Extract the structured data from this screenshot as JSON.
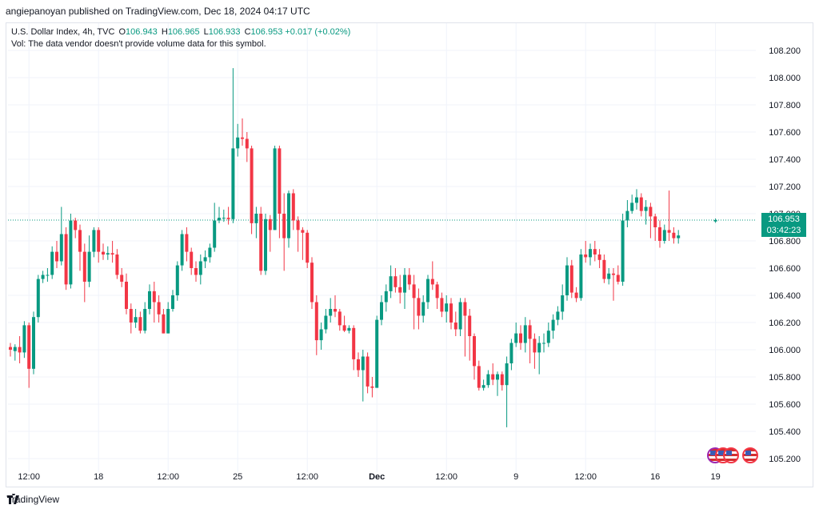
{
  "publisher": "angiepanoyan published on TradingView.com, Dec 18, 2024 04:17 UTC",
  "legend": {
    "symbol": "U.S. Dollar Index, 4h, TVC",
    "o_label": "O",
    "o": "106.943",
    "h_label": "H",
    "h": "106.965",
    "l_label": "L",
    "l": "106.933",
    "c_label": "C",
    "c": "106.953",
    "change": "+0.017 (+0.02%)"
  },
  "volume_note": "Vol: The data vendor doesn't provide volume data for this symbol.",
  "last_price": {
    "price": "106.953",
    "countdown": "03:42:23"
  },
  "footer": {
    "brand": "TradingView"
  },
  "colors": {
    "up": "#089981",
    "down": "#f23645",
    "grid": "#f0f3fa",
    "axis_text": "#131722",
    "price_line": "#089981"
  },
  "icons": [
    "tradingview-logo-icon",
    "us-flag-event-icon",
    "us-flag-event-icon",
    "us-flag-event-icon"
  ],
  "chart_data": {
    "type": "candlestick",
    "title": "U.S. Dollar Index, 4h, TVC",
    "ylim": [
      105.1,
      108.4
    ],
    "yticks": [
      "105.200",
      "105.400",
      "105.600",
      "105.800",
      "106.000",
      "106.200",
      "106.400",
      "106.600",
      "106.800",
      "107.000",
      "107.200",
      "107.400",
      "107.600",
      "107.800",
      "108.000",
      "108.200"
    ],
    "xticks": [
      "12:00",
      "18",
      "12:00",
      "25",
      "12:00",
      "Dec",
      "12:00",
      "9",
      "12:00",
      "16",
      "19"
    ],
    "xtick_bar_index": [
      4,
      19,
      34,
      49,
      64,
      79,
      94,
      109,
      124,
      139,
      152
    ],
    "bar_count": 152,
    "candles": [
      [
        106.02,
        106.0,
        106.05,
        105.95
      ],
      [
        105.99,
        106.02,
        106.04,
        105.92
      ],
      [
        106.02,
        105.98,
        106.1,
        105.9
      ],
      [
        105.98,
        106.18,
        106.21,
        105.94
      ],
      [
        106.18,
        105.86,
        106.2,
        105.72
      ],
      [
        105.86,
        106.24,
        106.28,
        105.82
      ],
      [
        106.24,
        106.52,
        106.55,
        106.2
      ],
      [
        106.52,
        106.55,
        106.58,
        106.49
      ],
      [
        106.55,
        106.55,
        106.6,
        106.5
      ],
      [
        106.55,
        106.72,
        106.76,
        106.52
      ],
      [
        106.72,
        106.65,
        106.8,
        106.6
      ],
      [
        106.65,
        106.85,
        107.05,
        106.62
      ],
      [
        106.85,
        106.48,
        106.9,
        106.44
      ],
      [
        106.48,
        106.95,
        107.0,
        106.45
      ],
      [
        106.95,
        106.88,
        106.97,
        106.82
      ],
      [
        106.88,
        106.72,
        106.92,
        106.58
      ],
      [
        106.72,
        106.5,
        106.78,
        106.35
      ],
      [
        106.5,
        106.72,
        106.84,
        106.46
      ],
      [
        106.72,
        106.88,
        106.9,
        106.68
      ],
      [
        106.88,
        106.72,
        106.9,
        106.64
      ],
      [
        106.72,
        106.7,
        106.78,
        106.66
      ],
      [
        106.7,
        106.71,
        106.76,
        106.66
      ],
      [
        106.71,
        106.7,
        106.8,
        106.64
      ],
      [
        106.7,
        106.55,
        106.74,
        106.52
      ],
      [
        106.55,
        106.5,
        106.6,
        106.46
      ],
      [
        106.5,
        106.3,
        106.56,
        106.26
      ],
      [
        106.3,
        106.2,
        106.34,
        106.12
      ],
      [
        106.2,
        106.24,
        106.3,
        106.16
      ],
      [
        106.24,
        106.14,
        106.28,
        106.12
      ],
      [
        106.14,
        106.3,
        106.35,
        106.12
      ],
      [
        106.3,
        106.43,
        106.48,
        106.26
      ],
      [
        106.43,
        106.35,
        106.5,
        106.2
      ],
      [
        106.35,
        106.26,
        106.4,
        106.2
      ],
      [
        106.26,
        106.12,
        106.3,
        106.12
      ],
      [
        106.12,
        106.3,
        106.35,
        106.12
      ],
      [
        106.3,
        106.4,
        106.44,
        106.28
      ],
      [
        106.4,
        106.62,
        106.65,
        106.36
      ],
      [
        106.62,
        106.85,
        106.88,
        106.58
      ],
      [
        106.85,
        106.72,
        106.9,
        106.65
      ],
      [
        106.72,
        106.6,
        106.75,
        106.55
      ],
      [
        106.6,
        106.55,
        106.65,
        106.5
      ],
      [
        106.55,
        106.65,
        106.7,
        106.48
      ],
      [
        106.65,
        106.68,
        106.73,
        106.6
      ],
      [
        106.68,
        106.75,
        106.78,
        106.64
      ],
      [
        106.75,
        106.95,
        107.08,
        106.72
      ],
      [
        106.95,
        106.97,
        107.05,
        106.93
      ],
      [
        106.97,
        106.97,
        107.03,
        106.94
      ],
      [
        106.97,
        106.96,
        107.05,
        106.92
      ],
      [
        106.96,
        107.48,
        108.07,
        106.93
      ],
      [
        107.48,
        107.56,
        107.66,
        107.42
      ],
      [
        107.56,
        107.55,
        107.7,
        107.5
      ],
      [
        107.55,
        107.48,
        107.6,
        107.38
      ],
      [
        107.48,
        106.93,
        107.5,
        106.85
      ],
      [
        106.93,
        107.0,
        107.05,
        106.82
      ],
      [
        107.0,
        106.58,
        107.05,
        106.55
      ],
      [
        106.58,
        106.96,
        107.0,
        106.55
      ],
      [
        106.96,
        106.88,
        106.99,
        106.72
      ],
      [
        106.88,
        107.48,
        107.5,
        106.88
      ],
      [
        107.48,
        107.0,
        107.5,
        106.82
      ],
      [
        107.0,
        106.82,
        107.15,
        106.58
      ],
      [
        106.82,
        107.15,
        107.17,
        106.75
      ],
      [
        107.15,
        106.95,
        107.18,
        106.88
      ],
      [
        106.95,
        106.88,
        106.98,
        106.72
      ],
      [
        106.88,
        106.86,
        106.9,
        106.66
      ],
      [
        106.86,
        106.64,
        106.88,
        106.6
      ],
      [
        106.64,
        106.35,
        106.68,
        106.3
      ],
      [
        106.35,
        106.07,
        106.4,
        105.96
      ],
      [
        106.07,
        106.15,
        106.2,
        106.0
      ],
      [
        106.15,
        106.25,
        106.3,
        106.12
      ],
      [
        106.25,
        106.3,
        106.38,
        106.2
      ],
      [
        106.3,
        106.28,
        106.4,
        106.24
      ],
      [
        106.28,
        106.18,
        106.3,
        106.14
      ],
      [
        106.18,
        106.14,
        106.25,
        106.13
      ],
      [
        106.14,
        106.16,
        106.18,
        106.12
      ],
      [
        106.16,
        105.93,
        106.18,
        105.85
      ],
      [
        105.93,
        105.85,
        105.98,
        105.8
      ],
      [
        105.85,
        105.95,
        106.0,
        105.62
      ],
      [
        105.95,
        105.73,
        105.98,
        105.68
      ],
      [
        105.73,
        105.72,
        105.8,
        105.65
      ],
      [
        105.72,
        106.22,
        106.25,
        105.72
      ],
      [
        106.22,
        106.35,
        106.4,
        106.18
      ],
      [
        106.35,
        106.43,
        106.48,
        106.28
      ],
      [
        106.43,
        106.54,
        106.62,
        106.38
      ],
      [
        106.54,
        106.46,
        106.6,
        106.42
      ],
      [
        106.46,
        106.42,
        106.55,
        106.34
      ],
      [
        106.42,
        106.55,
        106.6,
        106.3
      ],
      [
        106.55,
        106.48,
        106.6,
        106.44
      ],
      [
        106.48,
        106.38,
        106.55,
        106.15
      ],
      [
        106.38,
        106.25,
        106.45,
        106.15
      ],
      [
        106.25,
        106.35,
        106.4,
        106.2
      ],
      [
        106.35,
        106.52,
        106.55,
        106.3
      ],
      [
        106.52,
        106.48,
        106.65,
        106.44
      ],
      [
        106.48,
        106.38,
        106.5,
        106.3
      ],
      [
        106.38,
        106.28,
        106.42,
        106.24
      ],
      [
        106.28,
        106.34,
        106.4,
        106.2
      ],
      [
        106.34,
        106.2,
        106.38,
        106.15
      ],
      [
        106.2,
        106.15,
        106.28,
        106.1
      ],
      [
        106.15,
        106.35,
        106.38,
        106.1
      ],
      [
        106.35,
        106.25,
        106.38,
        105.95
      ],
      [
        106.25,
        106.1,
        106.3,
        105.92
      ],
      [
        106.1,
        105.88,
        106.12,
        105.78
      ],
      [
        105.88,
        105.72,
        105.92,
        105.7
      ],
      [
        105.72,
        105.74,
        105.78,
        105.7
      ],
      [
        105.74,
        105.82,
        105.85,
        105.72
      ],
      [
        105.82,
        105.78,
        105.9,
        105.74
      ],
      [
        105.78,
        105.82,
        105.84,
        105.66
      ],
      [
        105.82,
        105.74,
        105.84,
        105.7
      ],
      [
        105.74,
        105.9,
        105.95,
        105.43
      ],
      [
        105.9,
        106.05,
        106.08,
        105.85
      ],
      [
        106.05,
        106.12,
        106.2,
        106.02
      ],
      [
        106.12,
        106.05,
        106.18,
        106.0
      ],
      [
        106.05,
        106.18,
        106.24,
        105.98
      ],
      [
        106.18,
        106.08,
        106.22,
        105.9
      ],
      [
        106.08,
        105.98,
        106.12,
        105.86
      ],
      [
        105.98,
        106.05,
        106.1,
        105.82
      ],
      [
        106.05,
        106.05,
        106.12,
        105.98
      ],
      [
        106.05,
        106.14,
        106.2,
        106.02
      ],
      [
        106.14,
        106.22,
        106.26,
        106.08
      ],
      [
        106.22,
        106.28,
        106.32,
        106.18
      ],
      [
        106.28,
        106.4,
        106.48,
        106.22
      ],
      [
        106.4,
        106.62,
        106.68,
        106.36
      ],
      [
        106.62,
        106.42,
        106.66,
        106.38
      ],
      [
        106.42,
        106.38,
        106.46,
        106.35
      ],
      [
        106.38,
        106.7,
        106.74,
        106.36
      ],
      [
        106.7,
        106.68,
        106.8,
        106.64
      ],
      [
        106.68,
        106.74,
        106.78,
        106.62
      ],
      [
        106.74,
        106.7,
        106.8,
        106.65
      ],
      [
        106.7,
        106.66,
        106.74,
        106.6
      ],
      [
        106.66,
        106.52,
        106.7,
        106.49
      ],
      [
        106.52,
        106.56,
        106.6,
        106.48
      ],
      [
        106.56,
        106.55,
        106.6,
        106.36
      ],
      [
        106.55,
        106.5,
        106.62,
        106.48
      ],
      [
        106.5,
        106.95,
        107.0,
        106.47
      ],
      [
        106.95,
        107.02,
        107.1,
        106.9
      ],
      [
        107.02,
        107.08,
        107.14,
        107.0
      ],
      [
        107.08,
        107.12,
        107.18,
        107.03
      ],
      [
        107.12,
        107.02,
        107.15,
        106.98
      ],
      [
        107.02,
        107.05,
        107.1,
        106.92
      ],
      [
        107.05,
        106.98,
        107.08,
        106.82
      ],
      [
        106.98,
        106.9,
        107.0,
        106.8
      ],
      [
        106.9,
        106.8,
        106.95,
        106.75
      ],
      [
        106.8,
        106.88,
        106.92,
        106.78
      ],
      [
        106.88,
        106.86,
        107.17,
        106.8
      ],
      [
        106.86,
        106.82,
        106.9,
        106.78
      ],
      [
        106.82,
        106.84,
        106.88,
        106.78
      ]
    ],
    "current": {
      "open": 106.943,
      "high": 106.965,
      "low": 106.933,
      "close": 106.953
    }
  }
}
